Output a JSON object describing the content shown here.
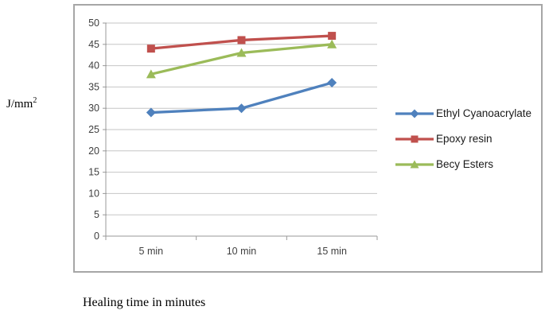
{
  "page": {
    "ylabel_base": "J/mm",
    "ylabel_sup": "2",
    "caption": "Healing time in minutes"
  },
  "chart_data": {
    "type": "line",
    "title": "",
    "xlabel": "Healing time in minutes",
    "ylabel": "J/mm^2",
    "categories": [
      "5 min",
      "10 min",
      "15 min"
    ],
    "series": [
      {
        "name": "Ethyl Cyanoacrylate",
        "values": [
          29,
          30,
          36
        ],
        "color": "#4F81BD",
        "marker": "diamond"
      },
      {
        "name": "Epoxy resin",
        "values": [
          44,
          46,
          47
        ],
        "color": "#C0504D",
        "marker": "square"
      },
      {
        "name": "Becy Esters",
        "values": [
          38,
          43,
          45
        ],
        "color": "#9BBB59",
        "marker": "triangle"
      }
    ],
    "ylim": [
      0,
      50
    ],
    "ytick_step": 5,
    "grid": true,
    "legend_position": "right",
    "colors": {
      "gridline": "#c6c6c6",
      "axis": "#9a9a9a",
      "tick_text": "#3f3f3f",
      "chart_border": "#a6a6a6"
    }
  }
}
